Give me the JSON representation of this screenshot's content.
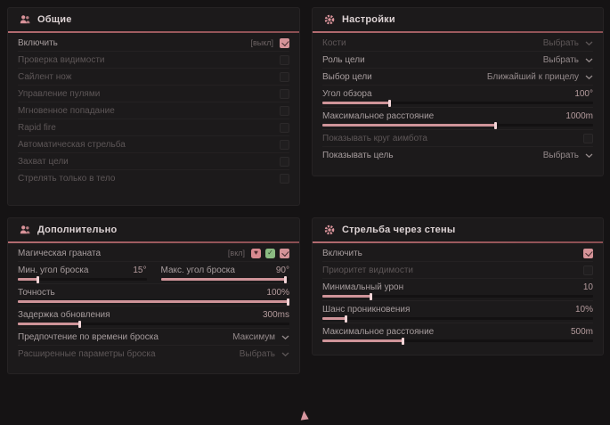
{
  "accent": {
    "pink": "#d59398",
    "slider_fill": "#cf9499",
    "header_line": "#a05f63",
    "green": "#8bbb82"
  },
  "panels": [
    {
      "title": "Общие",
      "icon": "users-icon",
      "rows": [
        {
          "type": "checkbox",
          "label": "Включить",
          "tag": "[выкл]",
          "checked": true,
          "dimmed": false
        },
        {
          "type": "checkbox",
          "label": "Проверка видимости",
          "checked": false,
          "dimmed": true
        },
        {
          "type": "checkbox",
          "label": "Сайлент нож",
          "checked": false,
          "dimmed": true
        },
        {
          "type": "checkbox",
          "label": "Управление пулями",
          "checked": false,
          "dimmed": true
        },
        {
          "type": "checkbox",
          "label": "Мгновенное попадание",
          "checked": false,
          "dimmed": true
        },
        {
          "type": "checkbox",
          "label": "Rapid fire",
          "checked": false,
          "dimmed": true
        },
        {
          "type": "checkbox",
          "label": "Автоматическая стрельба",
          "checked": false,
          "dimmed": true
        },
        {
          "type": "checkbox",
          "label": "Захват цели",
          "checked": false,
          "dimmed": true
        },
        {
          "type": "checkbox",
          "label": "Стрелять только в тело",
          "checked": false,
          "dimmed": true
        }
      ]
    },
    {
      "title": "Настройки",
      "icon": "gear-icon",
      "rows": [
        {
          "type": "select",
          "label": "Кости",
          "value": "Выбрать",
          "dimmed": true
        },
        {
          "type": "select",
          "label": "Роль цели",
          "value": "Выбрать",
          "dimmed": false
        },
        {
          "type": "select",
          "label": "Выбор цели",
          "value": "Ближайший к прицелу",
          "dimmed": false
        },
        {
          "type": "slider",
          "label": "Угол обзора",
          "value": "100°",
          "fill": 25
        },
        {
          "type": "slider",
          "label": "Максимальное расстояние",
          "value": "1000m",
          "fill": 64
        },
        {
          "type": "checkbox",
          "label": "Показывать круг аимбота",
          "checked": false,
          "dimmed": true
        },
        {
          "type": "select",
          "label": "Показывать цель",
          "value": "Выбрать",
          "dimmed": false
        }
      ]
    },
    {
      "title": "Дополнительно",
      "icon": "users-icon",
      "rows": [
        {
          "type": "checkbox_icons",
          "label": "Магическая граната",
          "tag": "[вкл]",
          "icons": [
            "heart-badge-icon",
            "check-badge-icon"
          ],
          "checked": true,
          "dimmed": false
        },
        {
          "type": "slider_pair",
          "items": [
            {
              "label": "Мин. угол броска",
              "value": "15°",
              "fill": 16
            },
            {
              "label": "Макс. угол броска",
              "value": "90°",
              "fill": 97
            }
          ]
        },
        {
          "type": "slider",
          "label": "Точность",
          "value": "100%",
          "fill": 100
        },
        {
          "type": "slider",
          "label": "Задержка обновления",
          "value": "300ms",
          "fill": 23
        },
        {
          "type": "select",
          "label": "Предпочтение по времени броска",
          "value": "Максимум",
          "dimmed": false
        },
        {
          "type": "select",
          "label": "Расширенные параметры броска",
          "value": "Выбрать",
          "dimmed": true
        }
      ]
    },
    {
      "title": "Стрельба через стены",
      "icon": "gear-icon",
      "rows": [
        {
          "type": "checkbox",
          "label": "Включить",
          "checked": true,
          "dimmed": false
        },
        {
          "type": "checkbox",
          "label": "Приоритет видимости",
          "checked": false,
          "dimmed": true
        },
        {
          "type": "slider",
          "label": "Минимальный урон",
          "value": "10",
          "fill": 18
        },
        {
          "type": "slider",
          "label": "Шанс проникновения",
          "value": "10%",
          "fill": 9
        },
        {
          "type": "slider",
          "label": "Максимальное расстояние",
          "value": "500m",
          "fill": 30
        }
      ]
    }
  ]
}
